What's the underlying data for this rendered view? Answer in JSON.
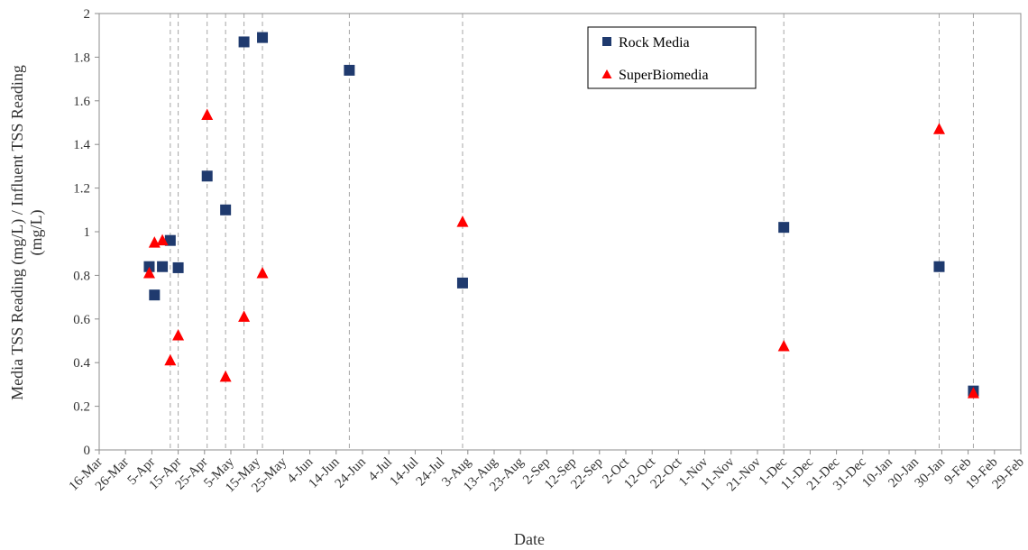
{
  "chart_data": {
    "type": "scatter",
    "xlabel": "Date",
    "ylabel_lines": [
      "Media TSS Reading (mg/L) / Influent TSS Reading",
      "(mg/L)"
    ],
    "ylim": [
      0,
      2
    ],
    "y_ticks": [
      "0",
      "0.2",
      "0.4",
      "0.6",
      "0.8",
      "1",
      "1.2",
      "1.4",
      "1.6",
      "1.8",
      "2"
    ],
    "xlim": [
      "16-Mar",
      "29-Feb"
    ],
    "x_ticks": [
      "16-Mar",
      "26-Mar",
      "5-Apr",
      "15-Apr",
      "25-Apr",
      "5-May",
      "15-May",
      "25-May",
      "4-Jun",
      "14-Jun",
      "24-Jun",
      "4-Jul",
      "14-Jul",
      "24-Jul",
      "3-Aug",
      "13-Aug",
      "23-Aug",
      "2-Sep",
      "12-Sep",
      "22-Sep",
      "2-Oct",
      "12-Oct",
      "22-Oct",
      "1-Nov",
      "11-Nov",
      "21-Nov",
      "1-Dec",
      "11-Dec",
      "21-Dec",
      "31-Dec",
      "10-Jan",
      "20-Jan",
      "30-Jan",
      "9-Feb",
      "19-Feb",
      "29-Feb"
    ],
    "grid": false,
    "vertical_reference_lines": [
      "12-Apr",
      "15-Apr",
      "26-Apr",
      "3-May",
      "10-May",
      "17-May",
      "19-Jun",
      "1-Aug",
      "1-Dec",
      "29-Jan",
      "11-Feb"
    ],
    "legend_position": "top-right",
    "series": [
      {
        "name": "Rock Media",
        "marker": "square",
        "color": "#1f3a6e",
        "points": [
          {
            "x": "4-Apr",
            "y": 0.84
          },
          {
            "x": "6-Apr",
            "y": 0.71
          },
          {
            "x": "9-Apr",
            "y": 0.84
          },
          {
            "x": "12-Apr",
            "y": 0.96
          },
          {
            "x": "15-Apr",
            "y": 0.835
          },
          {
            "x": "26-Apr",
            "y": 1.255
          },
          {
            "x": "3-May",
            "y": 1.1
          },
          {
            "x": "10-May",
            "y": 1.87
          },
          {
            "x": "17-May",
            "y": 1.89
          },
          {
            "x": "19-Jun",
            "y": 1.74
          },
          {
            "x": "1-Aug",
            "y": 0.765
          },
          {
            "x": "1-Dec",
            "y": 1.02
          },
          {
            "x": "29-Jan",
            "y": 0.84
          },
          {
            "x": "11-Feb",
            "y": 0.27
          }
        ]
      },
      {
        "name": "SuperBiomedia",
        "marker": "triangle",
        "color": "#ff0000",
        "points": [
          {
            "x": "4-Apr",
            "y": 0.81
          },
          {
            "x": "6-Apr",
            "y": 0.95
          },
          {
            "x": "9-Apr",
            "y": 0.96
          },
          {
            "x": "12-Apr",
            "y": 0.41
          },
          {
            "x": "15-Apr",
            "y": 0.525
          },
          {
            "x": "26-Apr",
            "y": 1.535
          },
          {
            "x": "3-May",
            "y": 0.335
          },
          {
            "x": "10-May",
            "y": 0.61
          },
          {
            "x": "17-May",
            "y": 0.81
          },
          {
            "x": "1-Aug",
            "y": 1.045
          },
          {
            "x": "1-Dec",
            "y": 0.475
          },
          {
            "x": "29-Jan",
            "y": 1.47
          },
          {
            "x": "11-Feb",
            "y": 0.26
          }
        ]
      }
    ]
  }
}
